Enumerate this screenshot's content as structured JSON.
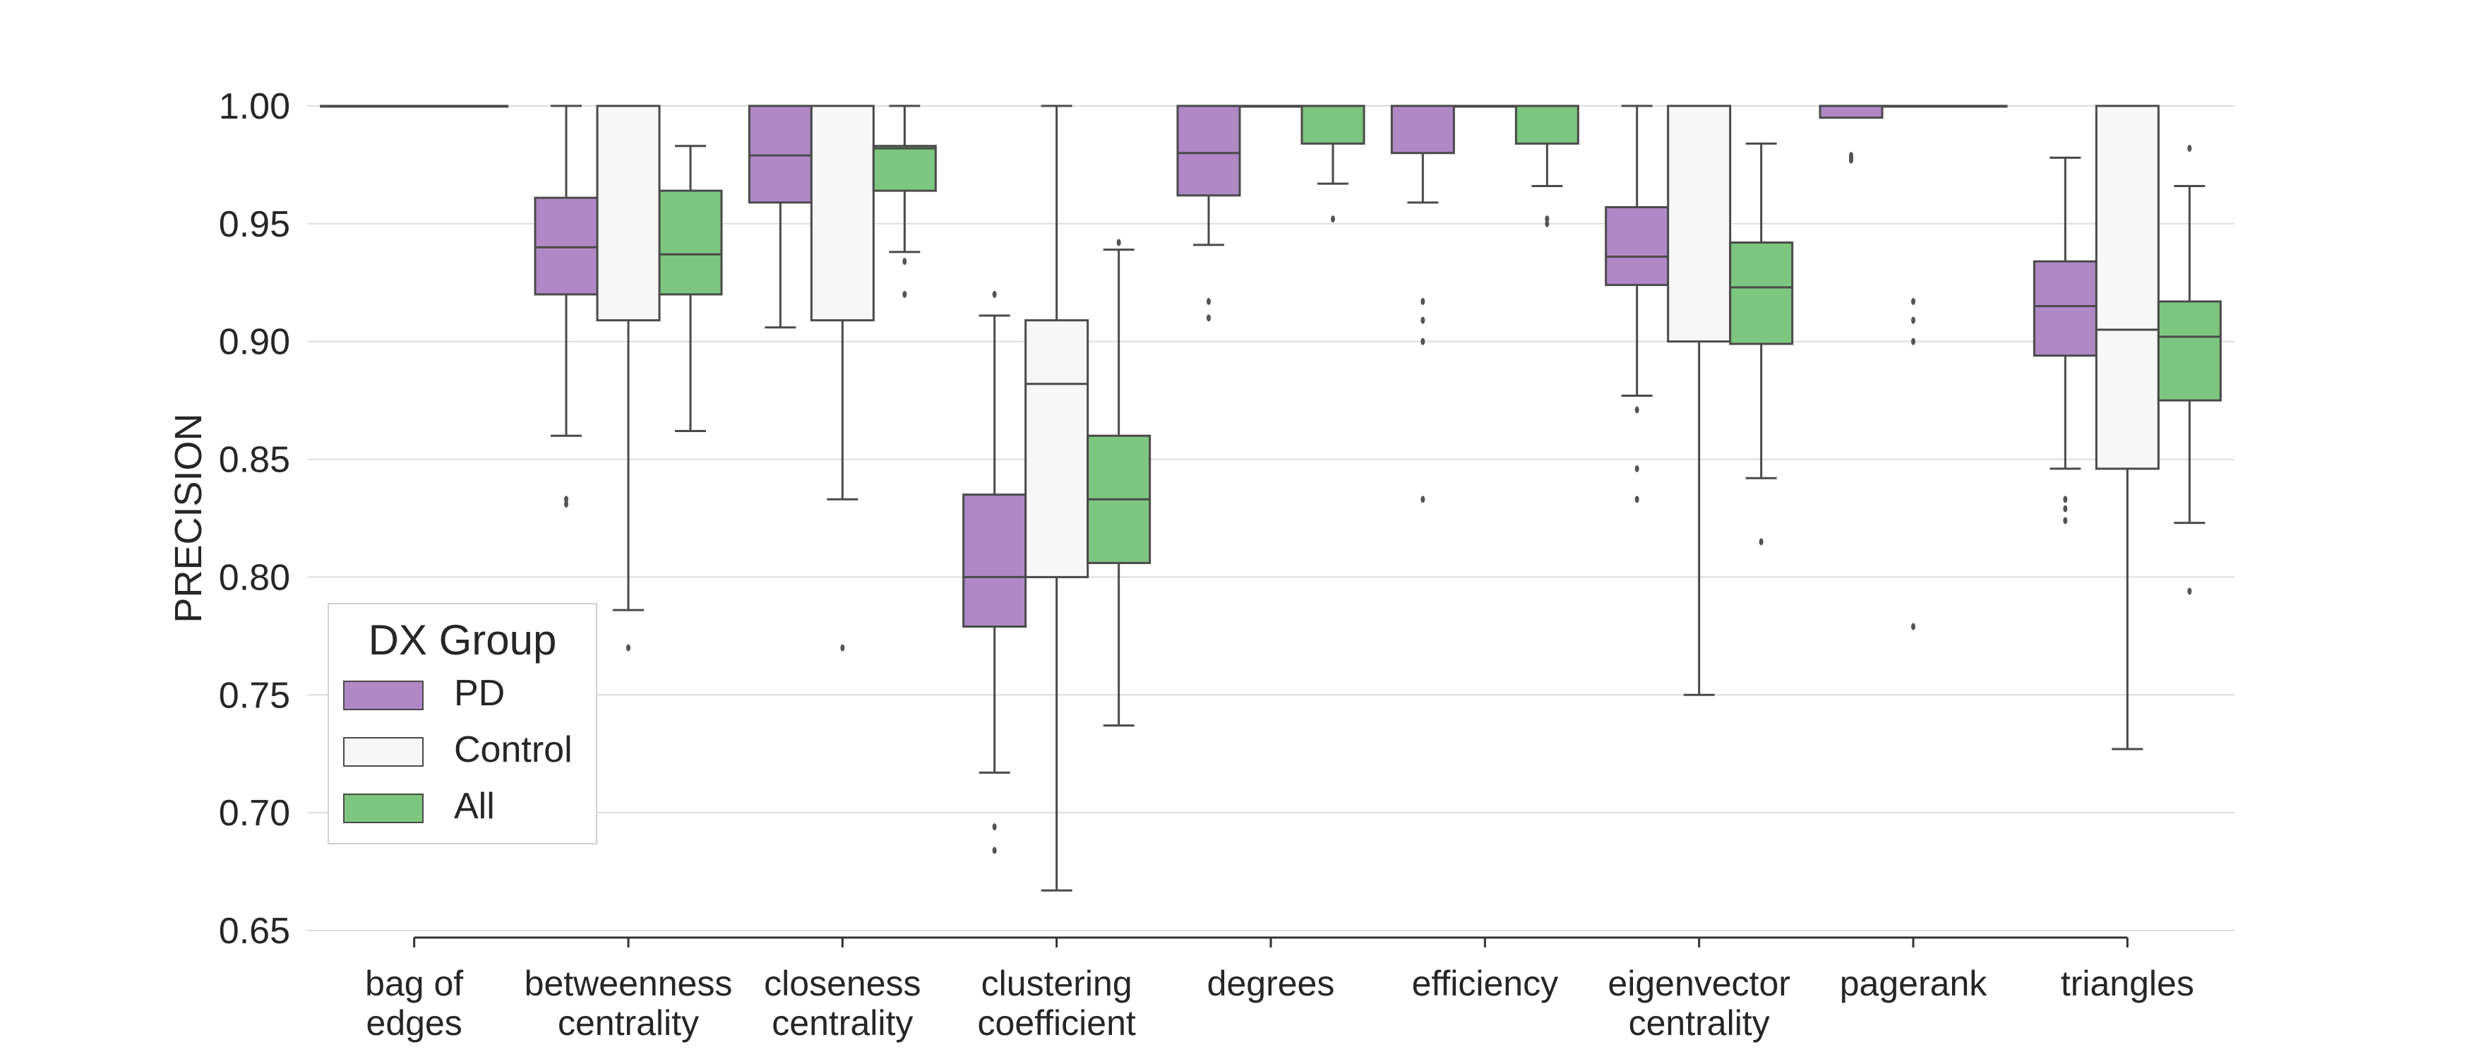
{
  "chart_data": {
    "type": "box",
    "title": "",
    "xlabel": "",
    "ylabel": "PRECISION",
    "ylim": [
      0.65,
      1.0
    ],
    "yticks": [
      "0.65",
      "0.70",
      "0.75",
      "0.80",
      "0.85",
      "0.90",
      "0.95",
      "1.00"
    ],
    "grid": true,
    "legend": {
      "title": "DX Group",
      "position": "lower-left"
    },
    "categories": [
      {
        "key": "bag_of_edges",
        "label_lines": [
          "bag of",
          "edges"
        ]
      },
      {
        "key": "betweenness_centrality",
        "label_lines": [
          "betweenness",
          "centrality"
        ]
      },
      {
        "key": "closeness_centrality",
        "label_lines": [
          "closeness",
          "centrality"
        ]
      },
      {
        "key": "clustering_coefficient",
        "label_lines": [
          "clustering",
          "coefficient"
        ]
      },
      {
        "key": "degrees",
        "label_lines": [
          "degrees"
        ]
      },
      {
        "key": "efficiency",
        "label_lines": [
          "efficiency"
        ]
      },
      {
        "key": "eigenvector_centrality",
        "label_lines": [
          "eigenvector",
          "centrality"
        ]
      },
      {
        "key": "pagerank",
        "label_lines": [
          "pagerank"
        ]
      },
      {
        "key": "triangles",
        "label_lines": [
          "triangles"
        ]
      }
    ],
    "series": [
      {
        "name": "PD",
        "color": "#b088c6",
        "boxes": [
          {
            "q1": 1.0,
            "median": 1.0,
            "q3": 1.0,
            "whislo": 1.0,
            "whishi": 1.0,
            "fliers": []
          },
          {
            "q1": 0.92,
            "median": 0.94,
            "q3": 0.961,
            "whislo": 0.86,
            "whishi": 1.0,
            "fliers": [
              0.831,
              0.833
            ]
          },
          {
            "q1": 0.959,
            "median": 0.979,
            "q3": 1.0,
            "whislo": 0.906,
            "whishi": 1.0,
            "fliers": []
          },
          {
            "q1": 0.779,
            "median": 0.8,
            "q3": 0.835,
            "whislo": 0.717,
            "whishi": 0.911,
            "fliers": [
              0.92,
              0.694,
              0.684
            ]
          },
          {
            "q1": 0.962,
            "median": 0.98,
            "q3": 1.0,
            "whislo": 0.941,
            "whishi": 1.0,
            "fliers": [
              0.917,
              0.91
            ]
          },
          {
            "q1": 0.98,
            "median": 1.0,
            "q3": 1.0,
            "whislo": 0.959,
            "whishi": 1.0,
            "fliers": [
              0.917,
              0.909,
              0.9,
              0.833
            ]
          },
          {
            "q1": 0.924,
            "median": 0.936,
            "q3": 0.957,
            "whislo": 0.877,
            "whishi": 1.0,
            "fliers": [
              0.871,
              0.846,
              0.833
            ]
          },
          {
            "q1": 0.995,
            "median": 1.0,
            "q3": 1.0,
            "whislo": 0.995,
            "whishi": 1.0,
            "fliers": [
              0.977,
              0.978,
              0.979
            ]
          },
          {
            "q1": 0.894,
            "median": 0.915,
            "q3": 0.934,
            "whislo": 0.846,
            "whishi": 0.978,
            "fliers": [
              0.833,
              0.829,
              0.824
            ]
          }
        ]
      },
      {
        "name": "Control",
        "color": "#f7f7f7",
        "boxes": [
          {
            "q1": 1.0,
            "median": 1.0,
            "q3": 1.0,
            "whislo": 1.0,
            "whishi": 1.0,
            "fliers": []
          },
          {
            "q1": 0.909,
            "median": 1.0,
            "q3": 1.0,
            "whislo": 0.786,
            "whishi": 1.0,
            "fliers": [
              0.77
            ]
          },
          {
            "q1": 0.909,
            "median": 1.0,
            "q3": 1.0,
            "whislo": 0.833,
            "whishi": 1.0,
            "fliers": [
              0.77
            ]
          },
          {
            "q1": 0.8,
            "median": 0.882,
            "q3": 0.909,
            "whislo": 0.667,
            "whishi": 1.0,
            "fliers": []
          },
          {
            "q1": 1.0,
            "median": 1.0,
            "q3": 1.0,
            "whislo": 1.0,
            "whishi": 1.0,
            "fliers": []
          },
          {
            "q1": 1.0,
            "median": 1.0,
            "q3": 1.0,
            "whislo": 1.0,
            "whishi": 1.0,
            "fliers": []
          },
          {
            "q1": 0.9,
            "median": 1.0,
            "q3": 1.0,
            "whislo": 0.75,
            "whishi": 1.0,
            "fliers": []
          },
          {
            "q1": 1.0,
            "median": 1.0,
            "q3": 1.0,
            "whislo": 1.0,
            "whishi": 1.0,
            "fliers": [
              0.917,
              0.909,
              0.9,
              0.779
            ]
          },
          {
            "q1": 0.846,
            "median": 0.905,
            "q3": 1.0,
            "whislo": 0.727,
            "whishi": 1.0,
            "fliers": []
          }
        ]
      },
      {
        "name": "All",
        "color": "#7dc67f",
        "boxes": [
          {
            "q1": 1.0,
            "median": 1.0,
            "q3": 1.0,
            "whislo": 1.0,
            "whishi": 1.0,
            "fliers": []
          },
          {
            "q1": 0.92,
            "median": 0.937,
            "q3": 0.964,
            "whislo": 0.862,
            "whishi": 0.983,
            "fliers": []
          },
          {
            "q1": 0.964,
            "median": 0.982,
            "q3": 0.983,
            "whislo": 0.938,
            "whishi": 1.0,
            "fliers": [
              0.934,
              0.92
            ]
          },
          {
            "q1": 0.806,
            "median": 0.833,
            "q3": 0.86,
            "whislo": 0.737,
            "whishi": 0.939,
            "fliers": [
              0.942
            ]
          },
          {
            "q1": 0.984,
            "median": 1.0,
            "q3": 1.0,
            "whislo": 0.967,
            "whishi": 1.0,
            "fliers": [
              0.952
            ]
          },
          {
            "q1": 0.984,
            "median": 1.0,
            "q3": 1.0,
            "whislo": 0.966,
            "whishi": 1.0,
            "fliers": [
              0.952,
              0.95
            ]
          },
          {
            "q1": 0.899,
            "median": 0.923,
            "q3": 0.942,
            "whislo": 0.842,
            "whishi": 0.984,
            "fliers": [
              0.815
            ]
          },
          {
            "q1": 1.0,
            "median": 1.0,
            "q3": 1.0,
            "whislo": 1.0,
            "whishi": 1.0,
            "fliers": []
          },
          {
            "q1": 0.875,
            "median": 0.902,
            "q3": 0.917,
            "whislo": 0.823,
            "whishi": 0.966,
            "fliers": [
              0.982,
              0.794
            ]
          }
        ]
      }
    ]
  }
}
